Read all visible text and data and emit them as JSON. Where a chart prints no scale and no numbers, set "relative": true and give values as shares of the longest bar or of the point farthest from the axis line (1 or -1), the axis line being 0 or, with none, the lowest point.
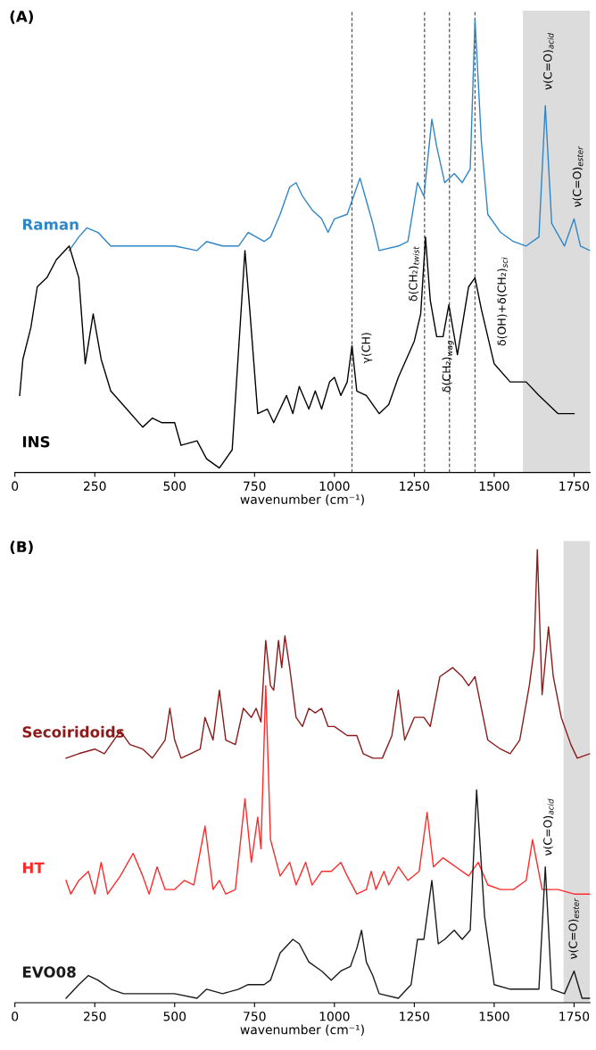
{
  "chart_data": [
    {
      "type": "line",
      "title": "(A)",
      "xlabel": "wavenumber (cm⁻¹)",
      "xlim": [
        0,
        1800
      ],
      "xticks": [
        0,
        250,
        500,
        750,
        1000,
        1250,
        1500,
        1750
      ],
      "relative": true,
      "series": [
        {
          "name": "Raman",
          "color": "#2e86c8",
          "x": [
            170,
            200,
            225,
            260,
            300,
            400,
            500,
            570,
            600,
            650,
            700,
            730,
            780,
            800,
            830,
            860,
            880,
            900,
            930,
            960,
            980,
            1000,
            1040,
            1060,
            1080,
            1100,
            1120,
            1140,
            1200,
            1230,
            1260,
            1280,
            1305,
            1320,
            1345,
            1375,
            1400,
            1425,
            1440,
            1460,
            1480,
            1520,
            1560,
            1600,
            1640,
            1660,
            1680,
            1720,
            1750,
            1770,
            1800
          ],
          "values": [
            0.49,
            0.52,
            0.54,
            0.53,
            0.5,
            0.5,
            0.5,
            0.49,
            0.51,
            0.5,
            0.5,
            0.53,
            0.51,
            0.52,
            0.57,
            0.63,
            0.64,
            0.61,
            0.58,
            0.56,
            0.53,
            0.56,
            0.57,
            0.61,
            0.65,
            0.6,
            0.55,
            0.49,
            0.5,
            0.51,
            0.64,
            0.61,
            0.78,
            0.72,
            0.64,
            0.66,
            0.64,
            0.67,
            1.0,
            0.73,
            0.57,
            0.53,
            0.51,
            0.5,
            0.52,
            0.81,
            0.55,
            0.5,
            0.56,
            0.5,
            0.49
          ]
        },
        {
          "name": "INS",
          "color": "#000000",
          "x": [
            15,
            25,
            50,
            70,
            100,
            130,
            170,
            200,
            220,
            245,
            270,
            300,
            350,
            400,
            430,
            460,
            500,
            520,
            570,
            600,
            640,
            680,
            710,
            720,
            735,
            760,
            790,
            810,
            850,
            870,
            890,
            920,
            940,
            960,
            985,
            1000,
            1020,
            1040,
            1055,
            1070,
            1100,
            1140,
            1170,
            1200,
            1250,
            1270,
            1285,
            1300,
            1320,
            1340,
            1358,
            1385,
            1420,
            1440,
            1460,
            1500,
            1550,
            1600,
            1640,
            1700,
            1750
          ],
          "values": [
            0.17,
            0.25,
            0.32,
            0.41,
            0.43,
            0.47,
            0.5,
            0.43,
            0.24,
            0.35,
            0.25,
            0.18,
            0.14,
            0.1,
            0.12,
            0.11,
            0.11,
            0.06,
            0.07,
            0.03,
            0.01,
            0.05,
            0.38,
            0.49,
            0.36,
            0.13,
            0.14,
            0.11,
            0.17,
            0.13,
            0.19,
            0.14,
            0.18,
            0.14,
            0.2,
            0.21,
            0.17,
            0.2,
            0.28,
            0.18,
            0.17,
            0.13,
            0.15,
            0.21,
            0.29,
            0.35,
            0.52,
            0.38,
            0.3,
            0.3,
            0.37,
            0.26,
            0.41,
            0.43,
            0.36,
            0.24,
            0.2,
            0.2,
            0.17,
            0.13,
            0.13
          ]
        }
      ],
      "ref_lines": [
        {
          "axis": "x",
          "value": 1055,
          "color": "#555555",
          "line_style": "dashed"
        },
        {
          "axis": "x",
          "value": 1282,
          "color": "#555555",
          "line_style": "dashed"
        },
        {
          "axis": "x",
          "value": 1360,
          "color": "#555555",
          "line_style": "dashed"
        },
        {
          "axis": "x",
          "value": 1440,
          "color": "#555555",
          "line_style": "dashed"
        }
      ],
      "bands": [
        {
          "axis": "x",
          "from": 1590,
          "to": 1800,
          "color": "#dcdcdc"
        }
      ],
      "annotations": [
        "γ(CH)",
        "δ(CH₂)$_{twist}$",
        "δ(CH₂)$_{wag}$",
        "δ(OH)+δ(CH₂)$_{sci}$",
        "ν(C=O)$_{acid}$",
        "ν(C=O)$_{ester}$"
      ]
    },
    {
      "type": "line",
      "title": "(B)",
      "xlabel": "wavenumber (cm⁻¹)",
      "xlim": [
        0,
        1800
      ],
      "xticks": [
        0,
        250,
        500,
        750,
        1000,
        1250,
        1500,
        1750
      ],
      "relative": true,
      "series": [
        {
          "name": "Secoiridoids",
          "color": "#8b1a1a",
          "x": [
            160,
            200,
            250,
            280,
            330,
            360,
            400,
            430,
            470,
            485,
            500,
            520,
            550,
            580,
            595,
            620,
            640,
            660,
            690,
            715,
            740,
            755,
            770,
            785,
            800,
            810,
            825,
            835,
            845,
            860,
            880,
            900,
            920,
            940,
            960,
            980,
            1000,
            1040,
            1070,
            1090,
            1120,
            1150,
            1180,
            1200,
            1220,
            1250,
            1280,
            1300,
            1330,
            1370,
            1400,
            1420,
            1440,
            1460,
            1480,
            1520,
            1550,
            1580,
            1610,
            1625,
            1635,
            1650,
            1670,
            1685,
            1710,
            1740,
            1760,
            1800
          ],
          "values": [
            0.54,
            0.55,
            0.56,
            0.55,
            0.6,
            0.57,
            0.56,
            0.54,
            0.58,
            0.65,
            0.58,
            0.54,
            0.55,
            0.56,
            0.63,
            0.58,
            0.69,
            0.58,
            0.57,
            0.65,
            0.63,
            0.65,
            0.62,
            0.8,
            0.7,
            0.69,
            0.8,
            0.74,
            0.81,
            0.74,
            0.63,
            0.61,
            0.65,
            0.64,
            0.65,
            0.61,
            0.61,
            0.59,
            0.59,
            0.55,
            0.54,
            0.54,
            0.59,
            0.69,
            0.58,
            0.63,
            0.63,
            0.61,
            0.72,
            0.74,
            0.72,
            0.7,
            0.72,
            0.65,
            0.58,
            0.56,
            0.55,
            0.58,
            0.7,
            0.78,
            1.0,
            0.68,
            0.83,
            0.72,
            0.63,
            0.57,
            0.54,
            0.55
          ]
        },
        {
          "name": "HT",
          "color": "#ff2a2a",
          "x": [
            160,
            175,
            200,
            230,
            250,
            270,
            290,
            330,
            370,
            400,
            420,
            445,
            470,
            500,
            530,
            560,
            595,
            620,
            640,
            660,
            690,
            720,
            740,
            760,
            770,
            785,
            800,
            830,
            860,
            880,
            910,
            930,
            960,
            990,
            1020,
            1040,
            1070,
            1100,
            1115,
            1130,
            1155,
            1170,
            1200,
            1230,
            1265,
            1290,
            1310,
            1340,
            1380,
            1420,
            1450,
            1480,
            1520,
            1560,
            1600,
            1620,
            1650,
            1700,
            1750,
            1800
          ],
          "values": [
            0.27,
            0.24,
            0.27,
            0.29,
            0.24,
            0.31,
            0.24,
            0.28,
            0.33,
            0.28,
            0.24,
            0.3,
            0.25,
            0.25,
            0.27,
            0.26,
            0.39,
            0.25,
            0.27,
            0.24,
            0.25,
            0.45,
            0.31,
            0.41,
            0.34,
            0.7,
            0.36,
            0.28,
            0.31,
            0.26,
            0.31,
            0.26,
            0.29,
            0.29,
            0.31,
            0.28,
            0.24,
            0.25,
            0.29,
            0.25,
            0.29,
            0.26,
            0.3,
            0.27,
            0.29,
            0.42,
            0.3,
            0.32,
            0.3,
            0.28,
            0.31,
            0.26,
            0.25,
            0.25,
            0.27,
            0.36,
            0.25,
            0.25,
            0.24,
            0.24
          ]
        },
        {
          "name": "EVO08",
          "color": "#1a1a1a",
          "x": [
            160,
            200,
            230,
            260,
            300,
            340,
            400,
            500,
            570,
            600,
            650,
            700,
            730,
            780,
            800,
            830,
            870,
            890,
            920,
            960,
            990,
            1020,
            1050,
            1070,
            1085,
            1100,
            1120,
            1140,
            1200,
            1240,
            1260,
            1280,
            1305,
            1325,
            1345,
            1375,
            1400,
            1425,
            1445,
            1470,
            1500,
            1550,
            1600,
            1640,
            1660,
            1680,
            1720,
            1750,
            1775,
            1800
          ],
          "values": [
            0.01,
            0.04,
            0.06,
            0.05,
            0.03,
            0.02,
            0.02,
            0.02,
            0.01,
            0.03,
            0.02,
            0.03,
            0.04,
            0.04,
            0.05,
            0.11,
            0.14,
            0.13,
            0.09,
            0.07,
            0.05,
            0.07,
            0.08,
            0.12,
            0.16,
            0.09,
            0.06,
            0.02,
            0.01,
            0.04,
            0.14,
            0.14,
            0.27,
            0.13,
            0.14,
            0.16,
            0.14,
            0.16,
            0.47,
            0.19,
            0.04,
            0.03,
            0.03,
            0.03,
            0.3,
            0.03,
            0.02,
            0.07,
            0.01,
            0.01
          ]
        }
      ],
      "bands": [
        {
          "axis": "x",
          "from": 1717,
          "to": 1800,
          "color": "#dcdcdc"
        }
      ],
      "annotations": [
        "ν(C=O)$_{acid}$",
        "ν(C=O)$_{ester}$"
      ]
    }
  ]
}
